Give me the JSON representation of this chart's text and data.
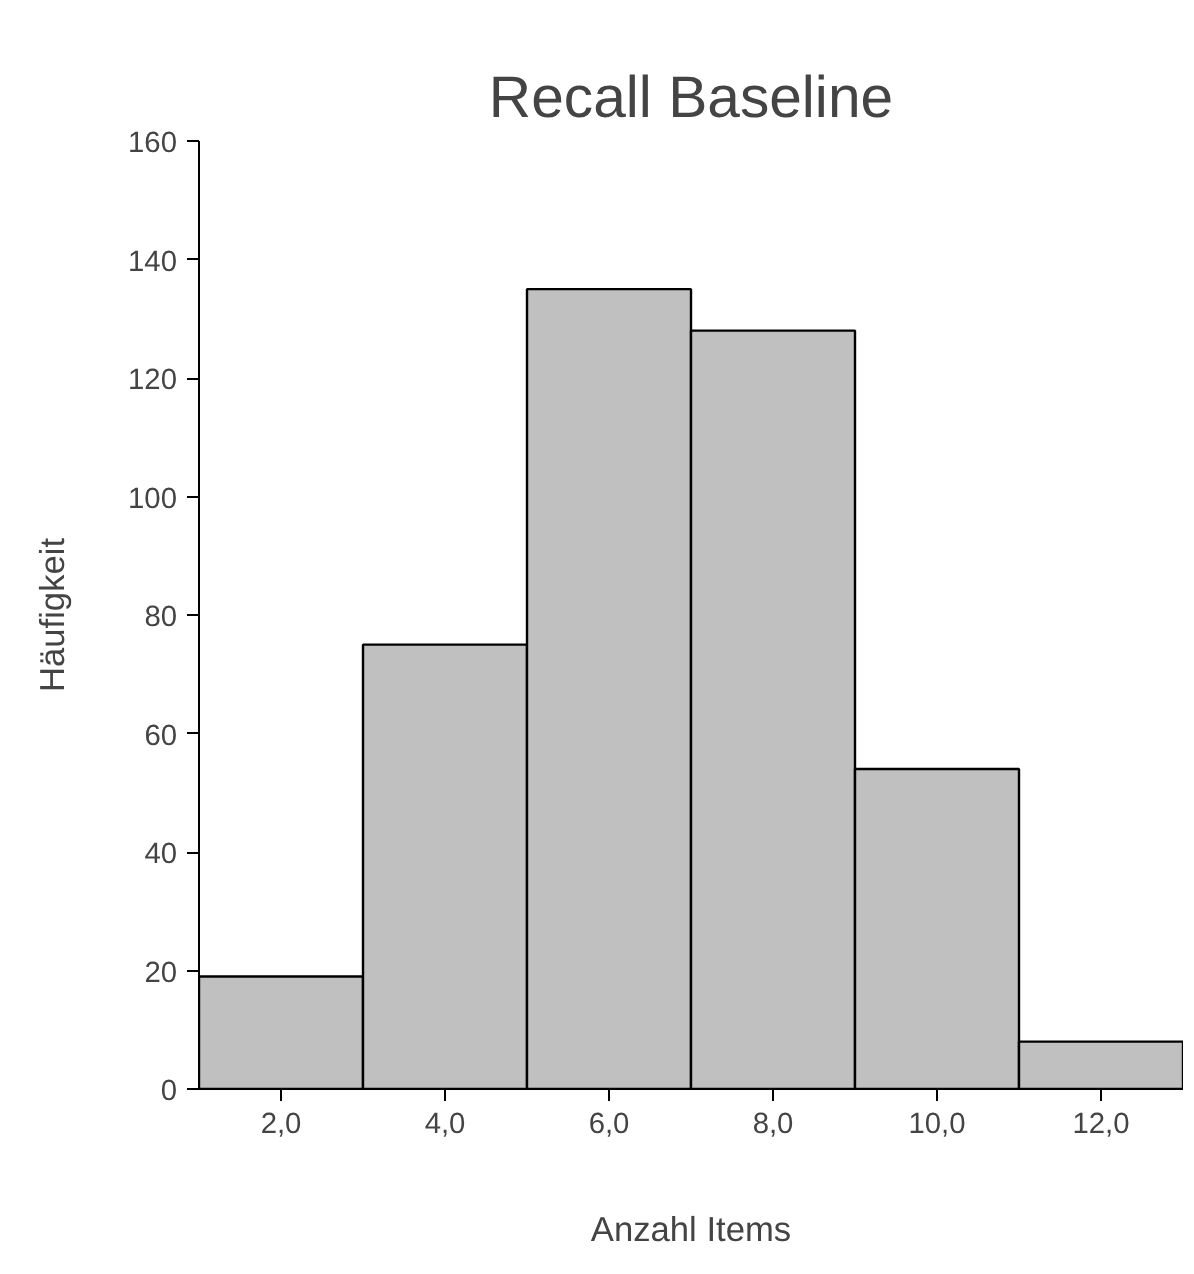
{
  "chart_data": {
    "type": "histogram",
    "title": "Recall Baseline",
    "xlabel": "Anzahl Items",
    "ylabel": "Häufigkeit",
    "bins": [
      1,
      3,
      5,
      7,
      9,
      11,
      13
    ],
    "values": [
      19,
      75,
      135,
      128,
      54,
      8
    ],
    "color": "#c0c0c0",
    "xlim": [
      1,
      13
    ],
    "ylim": [
      0,
      160
    ],
    "xticks": [
      {
        "value": 2,
        "label": "2,0"
      },
      {
        "value": 4,
        "label": "4,0"
      },
      {
        "value": 6,
        "label": "6,0"
      },
      {
        "value": 8,
        "label": "8,0"
      },
      {
        "value": 10,
        "label": "10,0"
      },
      {
        "value": 12,
        "label": "12,0"
      }
    ],
    "yticks": [
      0,
      20,
      40,
      60,
      80,
      100,
      120,
      140,
      160
    ],
    "grid": false
  }
}
